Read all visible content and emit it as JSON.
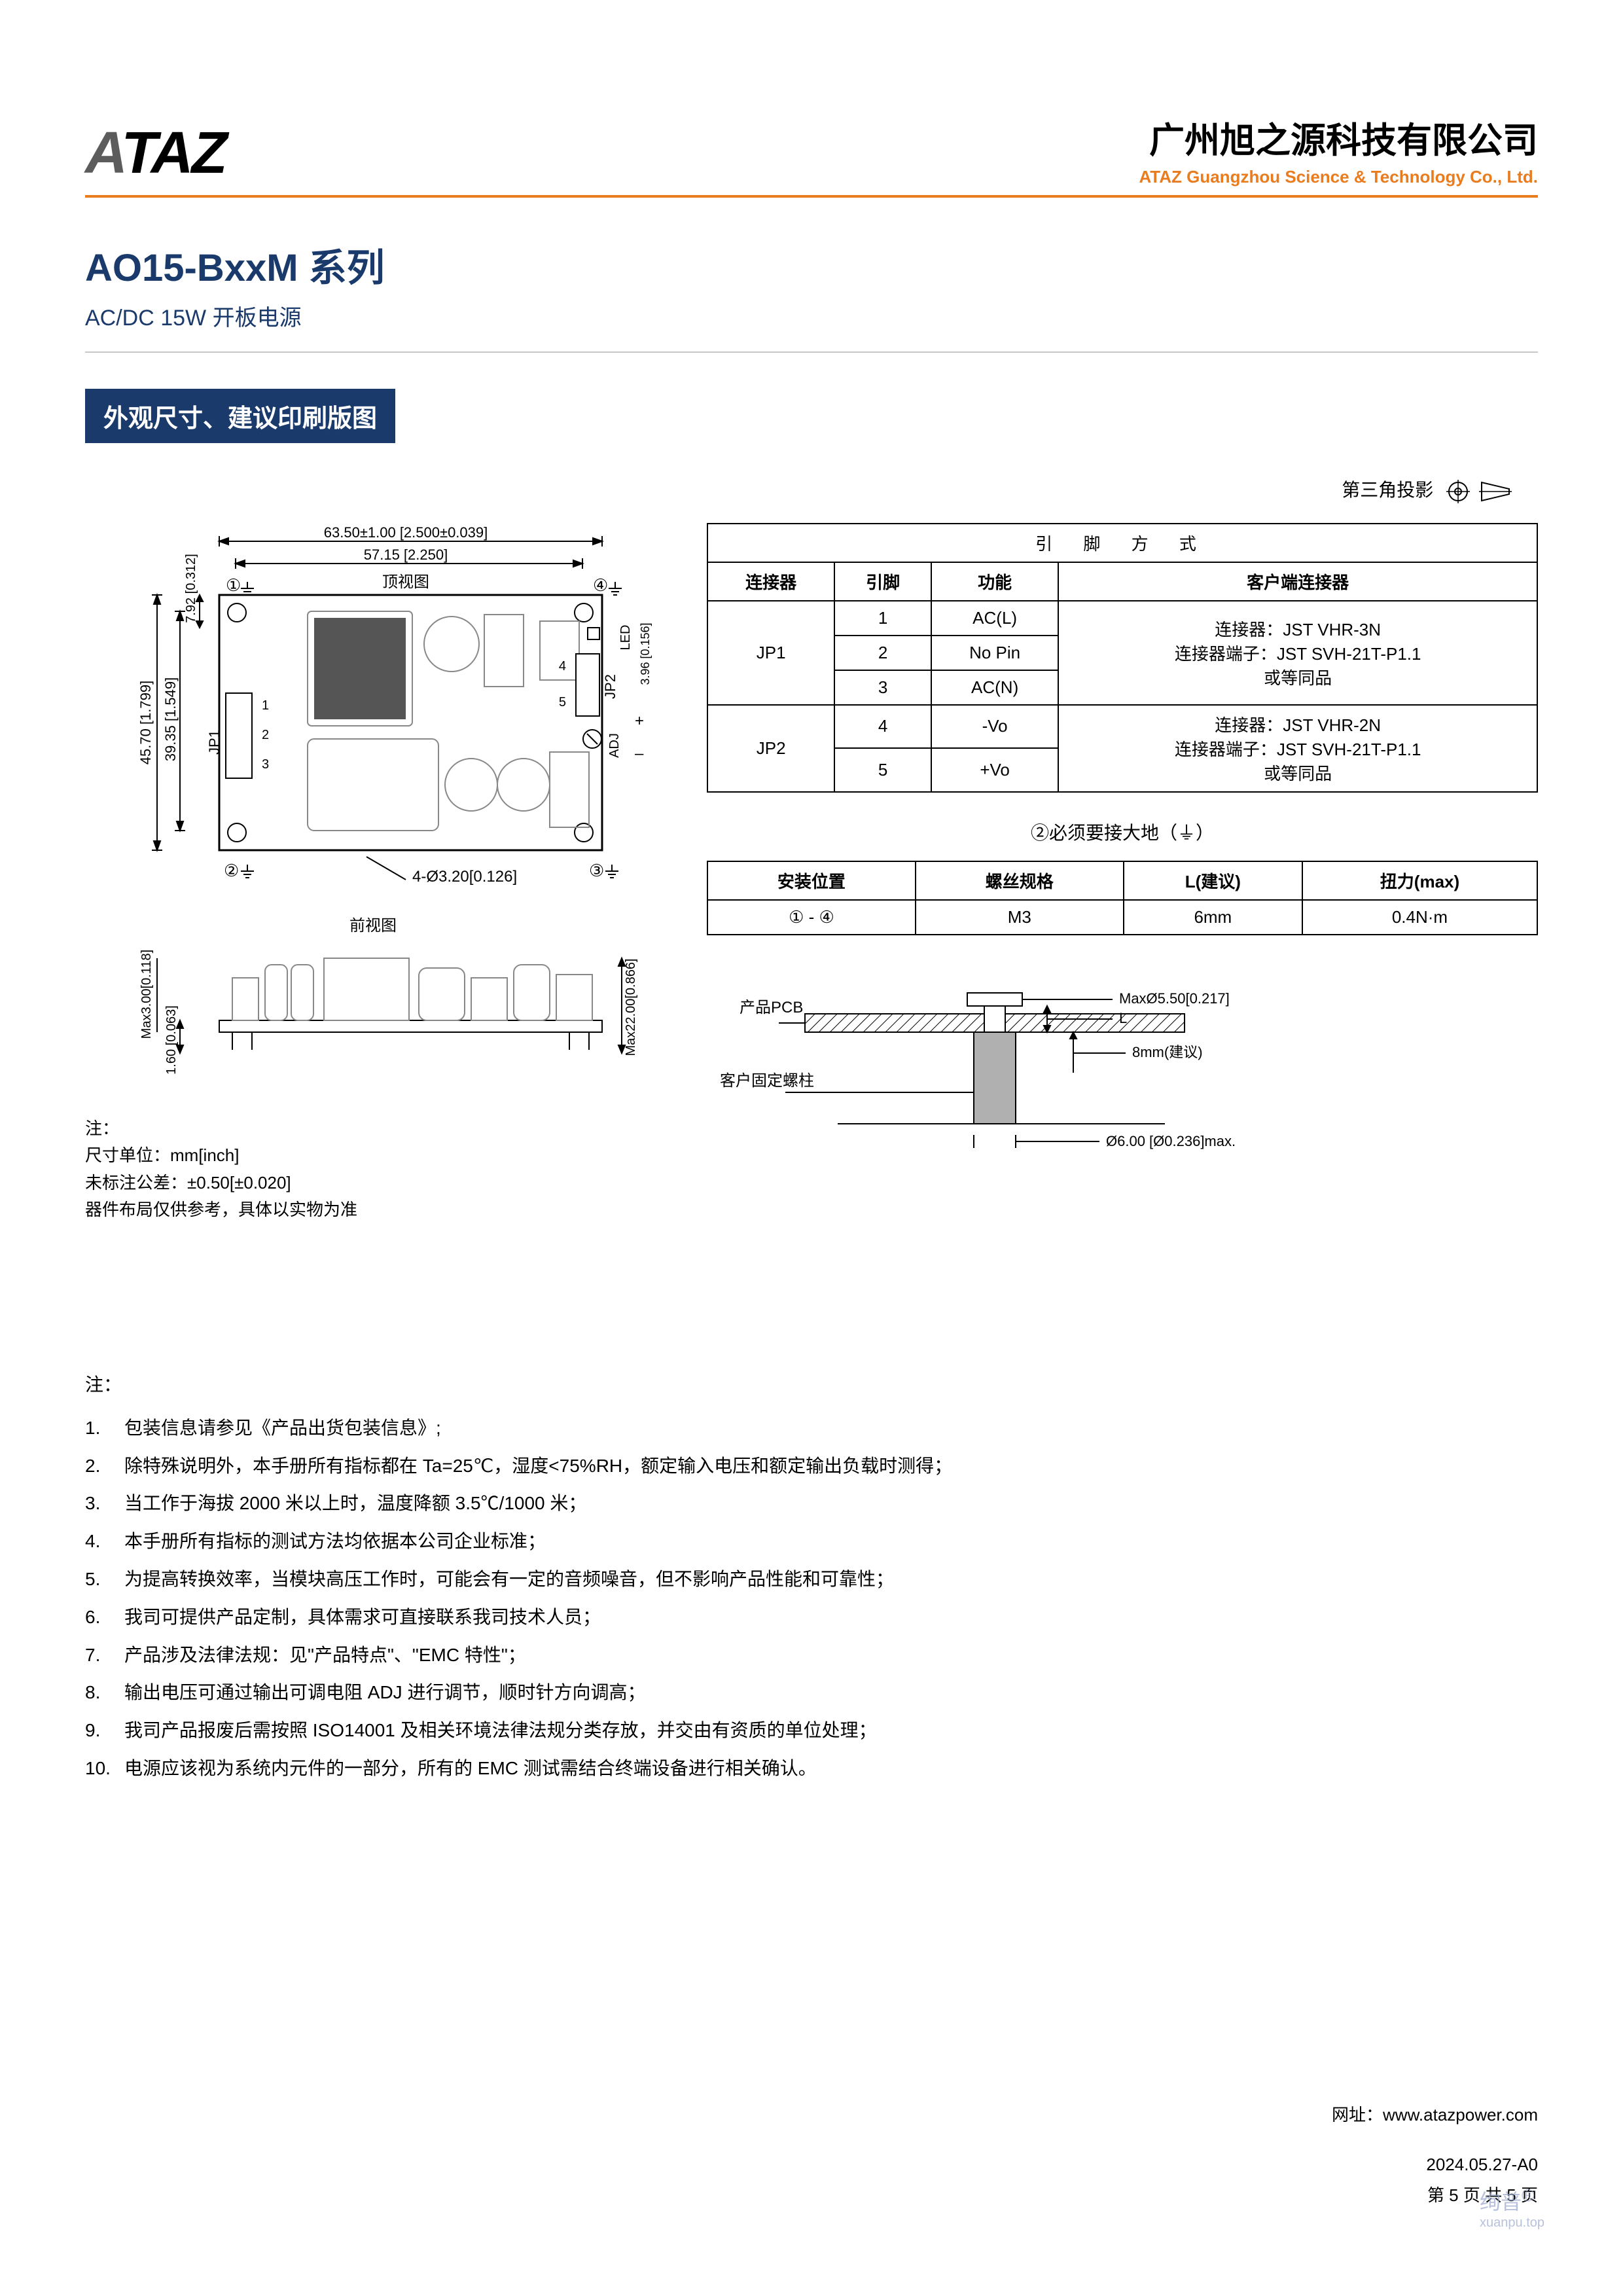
{
  "header": {
    "logo_text": "ATAZ",
    "company_cn": "广州旭之源科技有限公司",
    "company_en": "ATAZ Guangzhou Science & Technology Co., Ltd."
  },
  "product": {
    "title": "AO15-BxxM 系列",
    "subtitle": "AC/DC 15W  开板电源"
  },
  "section_badge": "外观尺寸、建议印刷版图",
  "projection_label": "第三角投影",
  "top_drawing": {
    "label_top": "顶视图",
    "dim_w_outer": "63.50±1.00 [2.500±0.039]",
    "dim_w_inner": "57.15 [2.250]",
    "dim_h_outer": "45.70 [1.799]",
    "dim_h_inner": "39.35 [1.549]",
    "dim_offset": "7.92 [0.312]",
    "hole_spec": "4-Ø3.20[0.126]",
    "jp1_label": "JP1",
    "jp2_label": "JP2",
    "led_label": "LED",
    "adj_label": "ADJ",
    "led_dim": "3.96 [0.156]",
    "pins_jp1": [
      "1",
      "2",
      "3"
    ],
    "pins_jp2": [
      "4",
      "5"
    ],
    "corners": [
      "①",
      "②",
      "③",
      "④"
    ],
    "ground_symbol_at": [
      "①",
      "②",
      "③",
      "④"
    ]
  },
  "front_drawing": {
    "label": "前视图",
    "dim_top": "Max3.00[0.118]",
    "dim_pcb": "1.60 [0.063]",
    "dim_total": "Max22.00[0.866]"
  },
  "drawing_notes": {
    "hdr": "注：",
    "l1": "尺寸单位：mm[inch]",
    "l2": "未标注公差：±0.50[±0.020]",
    "l3": "器件布局仅供参考，具体以实物为准"
  },
  "pin_table": {
    "title": "引 脚 方 式",
    "headers": [
      "连接器",
      "引脚",
      "功能",
      "客户端连接器"
    ],
    "rows": [
      {
        "conn": "JP1",
        "pin": "1",
        "func": "AC(L)",
        "client": "连接器：JST VHR-3N\n连接器端子：JST SVH-21T-P1.1\n或等同品",
        "rowspan": 3
      },
      {
        "conn": "",
        "pin": "2",
        "func": "No Pin",
        "client": ""
      },
      {
        "conn": "",
        "pin": "3",
        "func": "AC(N)",
        "client": ""
      },
      {
        "conn": "JP2",
        "pin": "4",
        "func": "-Vo",
        "client": "连接器：JST VHR-2N\n连接器端子：JST SVH-21T-P1.1\n或等同品",
        "rowspan": 2
      },
      {
        "conn": "",
        "pin": "5",
        "func": "+Vo",
        "client": ""
      }
    ]
  },
  "ground_note": "②必须要接大地（⏚）",
  "screw_table": {
    "headers": [
      "安装位置",
      "螺丝规格",
      "L(建议)",
      "扭力(max)"
    ],
    "row": [
      "① - ④",
      "M3",
      "6mm",
      "0.4N·m"
    ]
  },
  "screw_diagram": {
    "pcb_label": "产品PCB",
    "post_label": "客户固定螺柱",
    "dim_head": "MaxØ5.50[0.217]",
    "dim_L": "L",
    "dim_gap": "8mm(建议)",
    "dim_post": "Ø6.00 [Ø0.236]max."
  },
  "notes": {
    "hdr": "注：",
    "items": [
      "包装信息请参见《产品出货包装信息》;",
      "除特殊说明外，本手册所有指标都在 Ta=25℃，湿度<75%RH，额定输入电压和额定输出负载时测得；",
      "当工作于海拔 2000 米以上时，温度降额 3.5℃/1000 米；",
      "本手册所有指标的测试方法均依据本公司企业标准；",
      "为提高转换效率，当模块高压工作时，可能会有一定的音频噪音，但不影响产品性能和可靠性；",
      "我司可提供产品定制，具体需求可直接联系我司技术人员；",
      "产品涉及法律法规：见\"产品特点\"、\"EMC 特性\"；",
      "输出电压可通过输出可调电阻 ADJ 进行调节，顺时针方向调高；",
      "我司产品报废后需按照 ISO14001 及相关环境法律法规分类存放，并交由有资质的单位处理；",
      "电源应该视为系统内元件的一部分，所有的 EMC 测试需结合终端设备进行相关确认。"
    ]
  },
  "footer": {
    "url_label": "网址：",
    "url": "www.atazpower.com",
    "date": "2024.05.27-A0",
    "page": "第 5 页 共 5 页"
  },
  "watermark": {
    "main": "绚普",
    "reg": "®",
    "sub": "xuanpu.top"
  },
  "colors": {
    "brand_blue": "#1a3a6b",
    "brand_orange": "#e97c1f",
    "text": "#000000",
    "line": "#000000",
    "watermark": "#9ba8cc"
  }
}
